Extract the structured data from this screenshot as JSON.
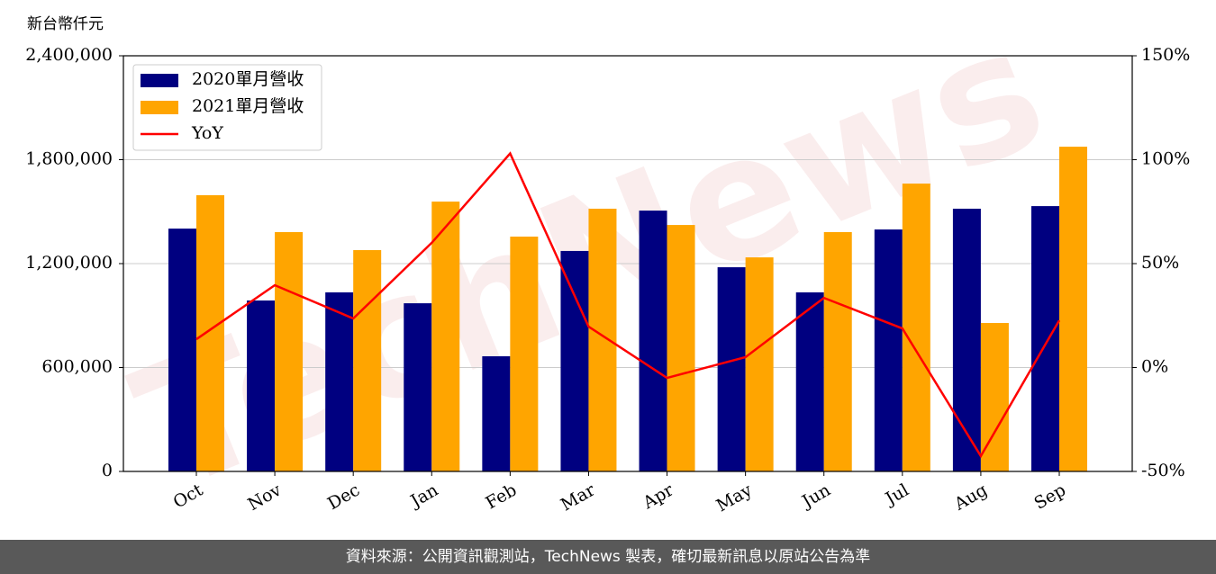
{
  "chart_data": {
    "type": "bar_line",
    "unit_label": "新台幣仟元",
    "watermark": "TechNews",
    "categories": [
      "Oct",
      "Nov",
      "Dec",
      "Jan",
      "Feb",
      "Mar",
      "Apr",
      "May",
      "Jun",
      "Jul",
      "Aug",
      "Sep"
    ],
    "series": [
      {
        "name": "2020單月營收",
        "color": "#000080",
        "type": "bar",
        "values": [
          1402000,
          987000,
          1034000,
          971000,
          665000,
          1273000,
          1506000,
          1179000,
          1034000,
          1397000,
          1517000,
          1532000
        ]
      },
      {
        "name": "2021單月營收",
        "color": "#ffa500",
        "type": "bar",
        "values": [
          1595000,
          1382000,
          1278000,
          1558000,
          1356000,
          1517000,
          1423000,
          1236000,
          1382000,
          1662000,
          857000,
          1875000
        ]
      },
      {
        "name": "YoY",
        "color": "#ff0000",
        "type": "line",
        "axis": "y2",
        "values": [
          13.6,
          39.6,
          23.6,
          60,
          103,
          19.7,
          -5,
          5,
          33.5,
          18.8,
          -42.6,
          22.7
        ]
      }
    ],
    "ylim": [
      0,
      2400000
    ],
    "yticks": [
      {
        "value": 0,
        "label": "0"
      },
      {
        "value": 600000,
        "label": "600,000"
      },
      {
        "value": 1200000,
        "label": "1,200,000"
      },
      {
        "value": 1800000,
        "label": "1,800,000"
      },
      {
        "value": 2400000,
        "label": "2,400,000"
      }
    ],
    "y2lim": [
      -50,
      150
    ],
    "y2ticks": [
      {
        "value": -50,
        "label": "-50%"
      },
      {
        "value": 0,
        "label": "0%"
      },
      {
        "value": 50,
        "label": "50%"
      },
      {
        "value": 100,
        "label": "100%"
      },
      {
        "value": 150,
        "label": "150%"
      }
    ],
    "grid": true,
    "legend": "upper left",
    "footer": "資料來源：公開資訊觀測站，TechNews 製表，確切最新訊息以原站公告為準"
  }
}
